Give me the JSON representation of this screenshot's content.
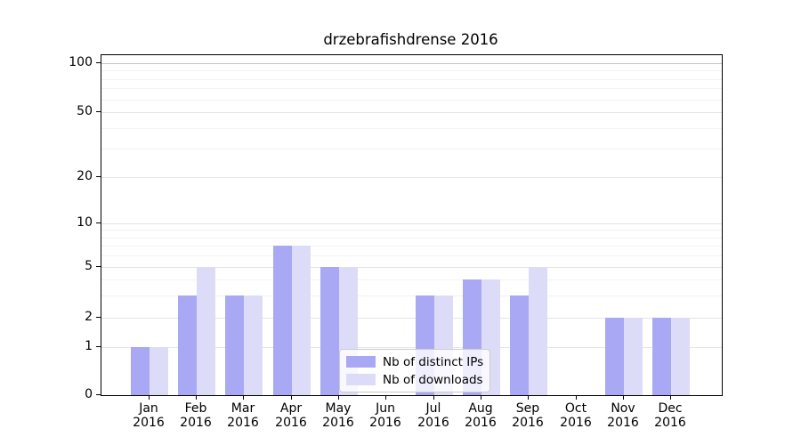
{
  "title": "drzebrafishdrense 2016",
  "legend": {
    "items": [
      {
        "label": "Nb of distinct IPs",
        "color": "#a8a8f5"
      },
      {
        "label": "Nb of downloads",
        "color": "#dcdcf8"
      }
    ]
  },
  "y_axis": {
    "tick_values": [
      100,
      50,
      20,
      10,
      5,
      2,
      1,
      0
    ],
    "tick_labels": [
      "100",
      "50",
      "20",
      "10",
      "5",
      "2",
      "1",
      "0"
    ]
  },
  "x_axis": {
    "year": "2016",
    "months": [
      "Jan",
      "Feb",
      "Mar",
      "Apr",
      "May",
      "Jun",
      "Jul",
      "Aug",
      "Sep",
      "Oct",
      "Nov",
      "Dec"
    ]
  },
  "chart_data": {
    "type": "bar",
    "title": "drzebrafishdrense 2016",
    "categories": [
      "Jan 2016",
      "Feb 2016",
      "Mar 2016",
      "Apr 2016",
      "May 2016",
      "Jun 2016",
      "Jul 2016",
      "Aug 2016",
      "Sep 2016",
      "Oct 2016",
      "Nov 2016",
      "Dec 2016"
    ],
    "series": [
      {
        "name": "Nb of distinct IPs",
        "color": "#a8a8f5",
        "values": [
          1,
          3,
          3,
          7,
          5,
          0,
          3,
          4,
          3,
          0,
          2,
          2
        ]
      },
      {
        "name": "Nb of downloads",
        "color": "#dcdcf8",
        "values": [
          1,
          5,
          3,
          7,
          5,
          0,
          3,
          4,
          5,
          0,
          2,
          2
        ]
      }
    ],
    "yscale": "log-like (0,1,2,5,10,20,50,100)",
    "yticks": [
      0,
      1,
      2,
      5,
      10,
      20,
      50,
      100
    ],
    "minor_yticks": [
      3,
      4,
      6,
      7,
      8,
      9,
      30,
      40,
      60,
      70,
      80,
      90
    ],
    "ylim": [
      0,
      100
    ],
    "grid": "horizontal, major and minor",
    "legend_position": "lower center"
  },
  "colors": {
    "bar_ips": "#a8a8f5",
    "bar_downloads": "#dcdcf8",
    "grid_major": "#e5e5e5",
    "grid_minor": "#f2f2f2",
    "grid_top": "#c6c6c6",
    "axis": "#000000"
  }
}
